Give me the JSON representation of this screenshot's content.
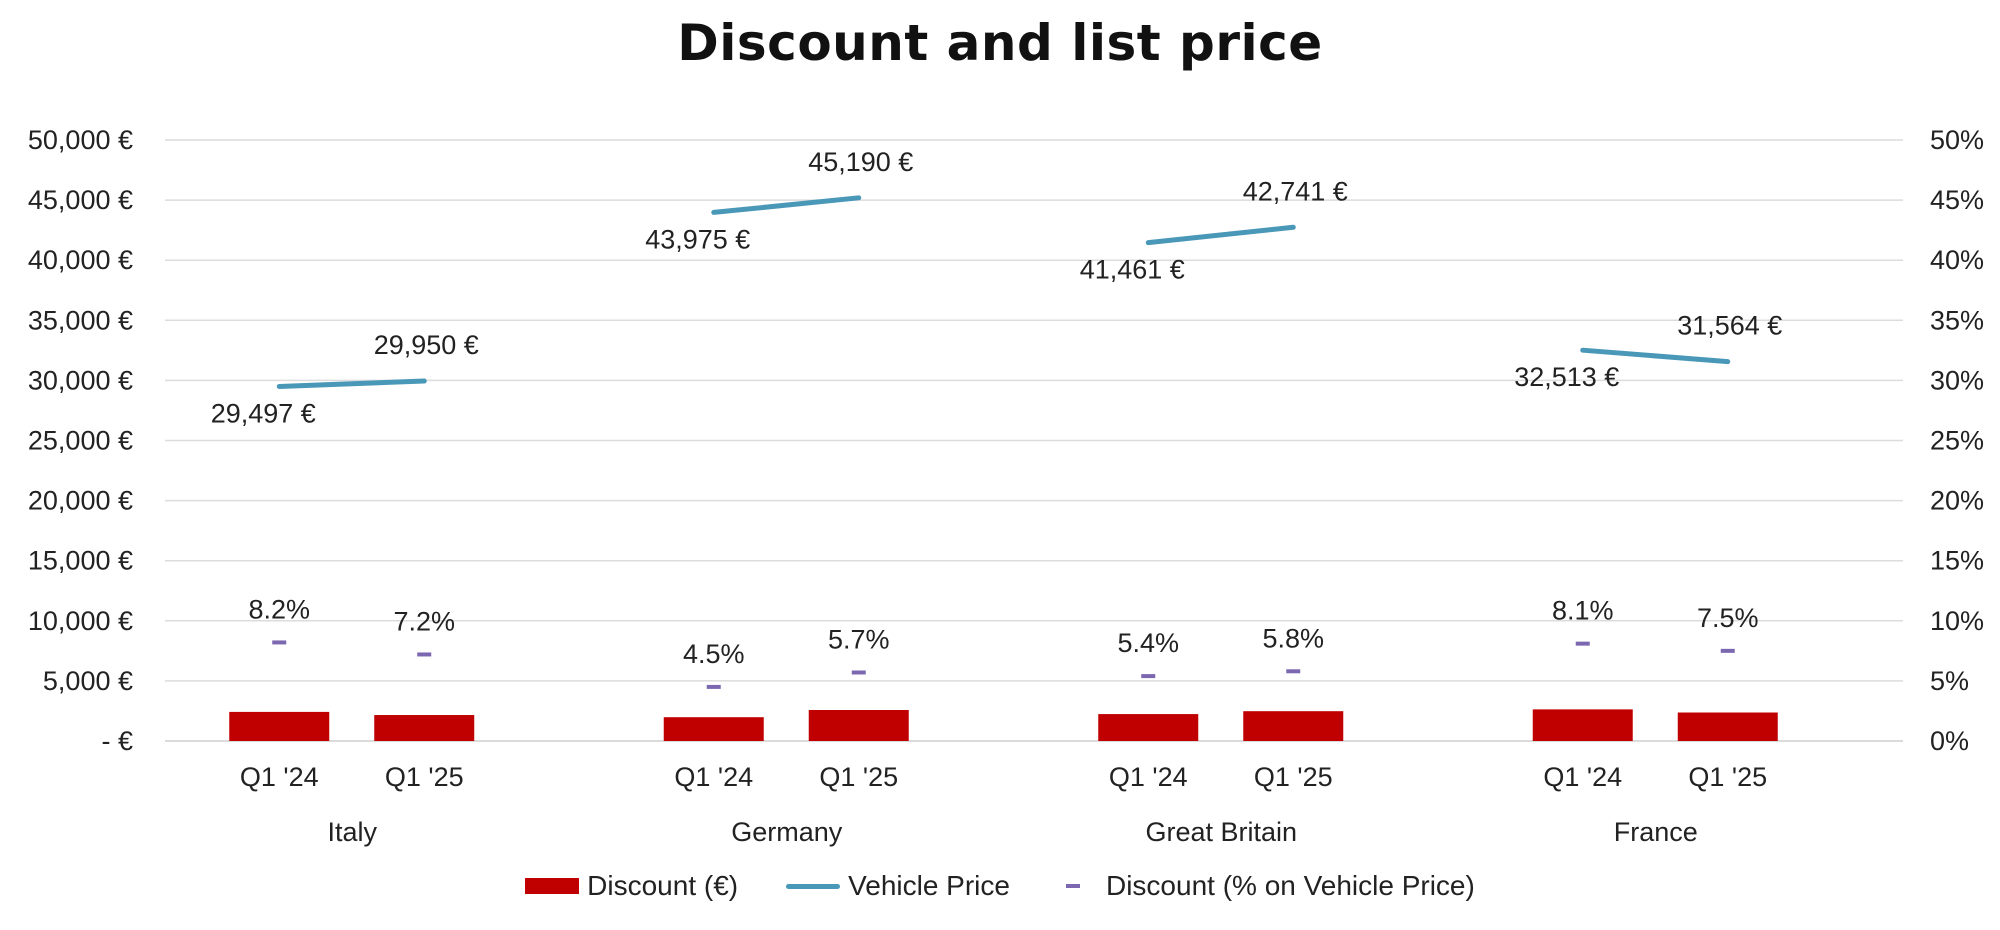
{
  "chart_data": {
    "type": "bar",
    "title": "Discount and list price",
    "groups": [
      "Italy",
      "Germany",
      "Great Britain",
      "France"
    ],
    "categories": [
      "Q1 '24",
      "Q1 '25"
    ],
    "y_left": {
      "min": 0,
      "max": 50000,
      "step": 5000,
      "tick_labels": [
        "-  €",
        "5,000 €",
        "10,000 €",
        "15,000 €",
        "20,000 €",
        "25,000 €",
        "30,000 €",
        "35,000 €",
        "40,000 €",
        "45,000 €",
        "50,000 €"
      ]
    },
    "y_right": {
      "min": 0,
      "max": 50,
      "step": 5,
      "tick_labels": [
        "0%",
        "5%",
        "10%",
        "15%",
        "20%",
        "25%",
        "30%",
        "35%",
        "40%",
        "45%",
        "50%"
      ]
    },
    "grid": true,
    "legend_position": "bottom",
    "series": [
      {
        "name": "Discount (€)",
        "kind": "bar",
        "axis": "left",
        "color": "#c00000",
        "values": [
          [
            2420,
            2160
          ],
          [
            1980,
            2580
          ],
          [
            2240,
            2480
          ],
          [
            2630,
            2370
          ]
        ]
      },
      {
        "name": "Vehicle Price",
        "kind": "line",
        "axis": "left",
        "color": "#4a98b8",
        "values": [
          [
            29497,
            29950
          ],
          [
            43975,
            45190
          ],
          [
            41461,
            42741
          ],
          [
            32513,
            31564
          ]
        ],
        "labels": [
          [
            "29,497 €",
            "29,950 €"
          ],
          [
            "43,975 €",
            "45,190 €"
          ],
          [
            "41,461 €",
            "42,741 €"
          ],
          [
            "32,513 €",
            "31,564 €"
          ]
        ]
      },
      {
        "name": "Discount (% on Vehicle Price)",
        "kind": "marker",
        "axis": "right",
        "color": "#7b68b0",
        "values": [
          [
            8.2,
            7.2
          ],
          [
            4.5,
            5.7
          ],
          [
            5.4,
            5.8
          ],
          [
            8.1,
            7.5
          ]
        ],
        "labels": [
          [
            "8.2%",
            "7.2%"
          ],
          [
            "4.5%",
            "5.7%"
          ],
          [
            "5.4%",
            "5.8%"
          ],
          [
            "8.1%",
            "7.5%"
          ]
        ]
      }
    ]
  }
}
